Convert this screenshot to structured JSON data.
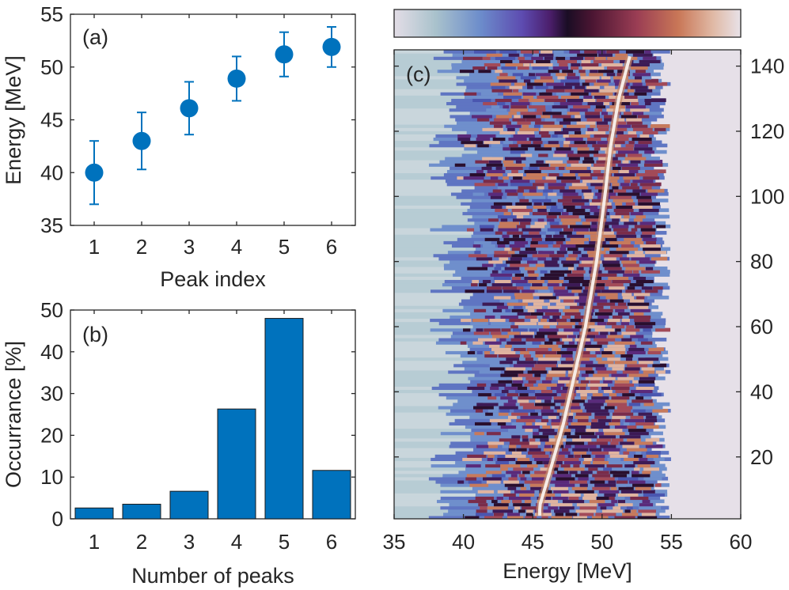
{
  "chart_data": [
    {
      "panel": "(a)",
      "type": "scatter",
      "xlabel": "Peak index",
      "ylabel": "Energy [MeV]",
      "xlim": [
        0.5,
        6.5
      ],
      "ylim": [
        35,
        55
      ],
      "xticks": [
        1,
        2,
        3,
        4,
        5,
        6
      ],
      "yticks": [
        35,
        40,
        45,
        50,
        55
      ],
      "color": "#0072BD",
      "points": [
        {
          "x": 1,
          "y": 40.0,
          "err_low": 3.0,
          "err_high": 3.0
        },
        {
          "x": 2,
          "y": 43.0,
          "err_low": 2.7,
          "err_high": 2.7
        },
        {
          "x": 3,
          "y": 46.1,
          "err_low": 2.5,
          "err_high": 2.5
        },
        {
          "x": 4,
          "y": 48.9,
          "err_low": 2.1,
          "err_high": 2.1
        },
        {
          "x": 5,
          "y": 51.2,
          "err_low": 2.1,
          "err_high": 2.1
        },
        {
          "x": 6,
          "y": 51.9,
          "err_low": 1.9,
          "err_high": 1.9
        }
      ]
    },
    {
      "panel": "(b)",
      "type": "bar",
      "xlabel": "Number of peaks",
      "ylabel": "Occurrance [%]",
      "ylim": [
        0,
        50
      ],
      "yticks": [
        0,
        10,
        20,
        30,
        40,
        50
      ],
      "color": "#0072BD",
      "categories": [
        "1",
        "2",
        "3",
        "4",
        "5",
        "6"
      ],
      "values": [
        2.6,
        3.5,
        6.6,
        26.3,
        48.0,
        11.6
      ]
    },
    {
      "panel": "(c)",
      "type": "heatmap",
      "xlabel": "Energy [MeV]",
      "ylabel": "",
      "xlim": [
        35,
        60
      ],
      "ylim": [
        1,
        145
      ],
      "xticks": [
        35,
        40,
        45,
        50,
        55,
        60
      ],
      "yticks": [
        20,
        40,
        60,
        80,
        100,
        120,
        140
      ],
      "colormap": "twilight",
      "colorbar": "top",
      "ridge": {
        "note": "bright central peak trace",
        "x": [
          45.5,
          46.2,
          47.2,
          48.0,
          48.8,
          49.6,
          50.2,
          50.6,
          51.2,
          52.0
        ],
        "y": [
          5,
          15,
          30,
          45,
          60,
          80,
          100,
          115,
          130,
          143
        ]
      }
    }
  ]
}
